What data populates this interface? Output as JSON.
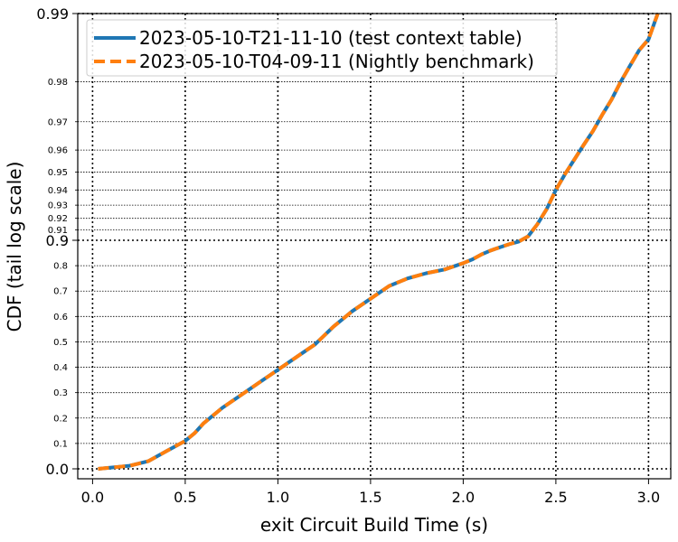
{
  "chart_data": {
    "type": "line",
    "xlabel": "exit Circuit Build Time (s)",
    "ylabel": "CDF (tail log scale)",
    "xlim": [
      -0.08,
      3.12
    ],
    "xticks": [
      0.0,
      0.5,
      1.0,
      1.5,
      2.0,
      2.5,
      3.0
    ],
    "xtick_labels": [
      "0.0",
      "0.5",
      "1.0",
      "1.5",
      "2.0",
      "2.5",
      "3.0"
    ],
    "yscale": "tail-log (1 - CDF)",
    "yticks_major": [
      0.0,
      0.9,
      0.99
    ],
    "ytick_major_labels": [
      "0.0",
      "0.9",
      "0.99"
    ],
    "yticks_minor": [
      0.1,
      0.2,
      0.3,
      0.4,
      0.5,
      0.6,
      0.7,
      0.8,
      0.91,
      0.92,
      0.93,
      0.94,
      0.95,
      0.96,
      0.97,
      0.98
    ],
    "ytick_minor_labels": [
      "0.1",
      "0.2",
      "0.3",
      "0.4",
      "0.5",
      "0.6",
      "0.7",
      "0.8",
      "0.91",
      "0.92",
      "0.93",
      "0.94",
      "0.95",
      "0.96",
      "0.97",
      "0.98"
    ],
    "grid": true,
    "legend_position": "top-left",
    "series": [
      {
        "name": "2023-05-10-T21-11-10 (test context table)",
        "color": "#1f77b4",
        "style": "solid",
        "x": [
          0.03,
          0.1,
          0.2,
          0.3,
          0.4,
          0.5,
          0.55,
          0.6,
          0.7,
          0.8,
          0.9,
          1.0,
          1.1,
          1.2,
          1.3,
          1.4,
          1.5,
          1.6,
          1.7,
          1.8,
          1.9,
          2.0,
          2.05,
          2.1,
          2.15,
          2.2,
          2.25,
          2.3,
          2.35,
          2.4,
          2.45,
          2.5,
          2.55,
          2.6,
          2.65,
          2.7,
          2.75,
          2.8,
          2.85,
          2.9,
          2.95,
          3.0,
          3.05
        ],
        "y": [
          0.0,
          0.005,
          0.012,
          0.03,
          0.07,
          0.11,
          0.14,
          0.18,
          0.24,
          0.29,
          0.34,
          0.39,
          0.44,
          0.49,
          0.56,
          0.62,
          0.67,
          0.72,
          0.75,
          0.77,
          0.785,
          0.81,
          0.825,
          0.845,
          0.86,
          0.873,
          0.885,
          0.895,
          0.904,
          0.915,
          0.927,
          0.94,
          0.949,
          0.956,
          0.962,
          0.967,
          0.972,
          0.976,
          0.98,
          0.983,
          0.9855,
          0.987,
          0.99
        ]
      },
      {
        "name": "2023-05-10-T04-09-11 (Nightly benchmark)",
        "color": "#ff7f0e",
        "style": "dashed",
        "x": [
          0.03,
          0.1,
          0.2,
          0.3,
          0.4,
          0.5,
          0.55,
          0.6,
          0.7,
          0.8,
          0.9,
          1.0,
          1.1,
          1.2,
          1.3,
          1.4,
          1.5,
          1.6,
          1.7,
          1.8,
          1.9,
          2.0,
          2.05,
          2.1,
          2.15,
          2.2,
          2.25,
          2.3,
          2.35,
          2.4,
          2.45,
          2.5,
          2.55,
          2.6,
          2.65,
          2.7,
          2.75,
          2.8,
          2.85,
          2.9,
          2.95,
          3.0,
          3.05
        ],
        "y": [
          0.0,
          0.005,
          0.012,
          0.03,
          0.07,
          0.11,
          0.14,
          0.18,
          0.24,
          0.29,
          0.34,
          0.39,
          0.44,
          0.49,
          0.56,
          0.62,
          0.67,
          0.72,
          0.75,
          0.77,
          0.785,
          0.81,
          0.825,
          0.845,
          0.86,
          0.873,
          0.885,
          0.895,
          0.904,
          0.915,
          0.927,
          0.94,
          0.949,
          0.956,
          0.962,
          0.967,
          0.972,
          0.976,
          0.98,
          0.983,
          0.9855,
          0.987,
          0.99
        ]
      }
    ]
  }
}
